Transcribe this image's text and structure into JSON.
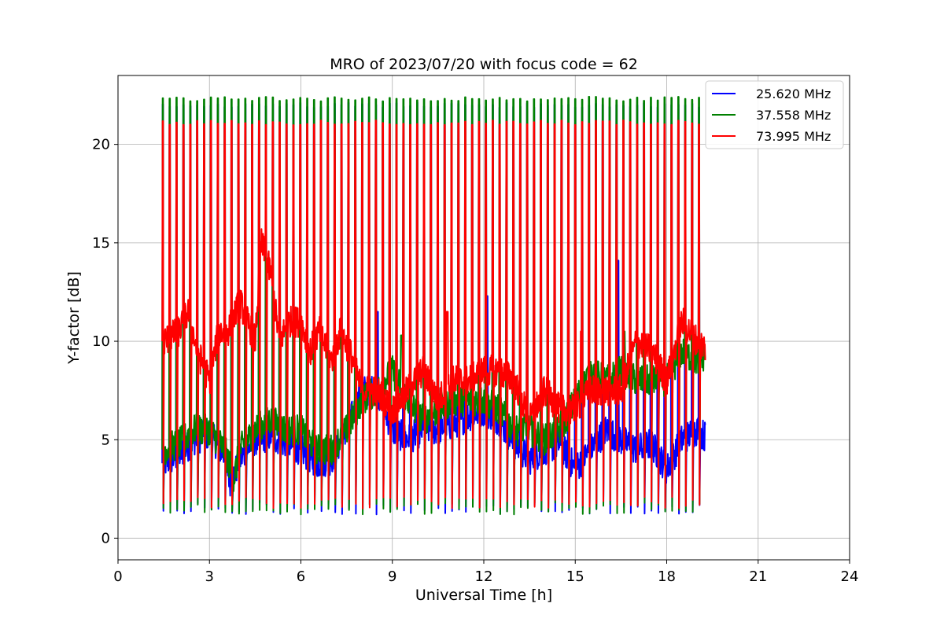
{
  "chart_data": {
    "type": "line",
    "title": "MRO of 2023/07/20 with focus code = 62",
    "xlabel": "Universal Time [h]",
    "ylabel": "Y-factor [dB]",
    "xlim": [
      0,
      24
    ],
    "ylim": [
      -1.1,
      23.5
    ],
    "xticks": [
      0,
      3,
      6,
      9,
      12,
      15,
      18,
      21,
      24
    ],
    "yticks": [
      0,
      5,
      10,
      15,
      20
    ],
    "grid": true,
    "legend_position": "upper-right",
    "calibration": {
      "start_h": 1.45,
      "period_h": 0.2255,
      "count": 79,
      "end_h": 19.4
    },
    "series": [
      {
        "name": "25.620 MHz",
        "color": "#0000ff",
        "peak_db": 22.0,
        "floor_db": 1.5,
        "baseline": [
          [
            1.5,
            3.8
          ],
          [
            2.0,
            4.2
          ],
          [
            2.5,
            5.0
          ],
          [
            3.0,
            5.3
          ],
          [
            3.5,
            4.2
          ],
          [
            3.7,
            2.8
          ],
          [
            4.0,
            4.0
          ],
          [
            4.5,
            5.0
          ],
          [
            5.0,
            5.2
          ],
          [
            5.5,
            4.8
          ],
          [
            6.0,
            4.5
          ],
          [
            6.5,
            3.8
          ],
          [
            7.0,
            4.0
          ],
          [
            7.5,
            5.5
          ],
          [
            8.0,
            7.5
          ],
          [
            8.5,
            7.5
          ],
          [
            9.0,
            5.5
          ],
          [
            9.5,
            5.0
          ],
          [
            10.0,
            5.5
          ],
          [
            10.5,
            5.5
          ],
          [
            11.0,
            5.8
          ],
          [
            11.5,
            6.2
          ],
          [
            12.0,
            6.5
          ],
          [
            12.5,
            6.0
          ],
          [
            13.0,
            4.8
          ],
          [
            13.5,
            4.0
          ],
          [
            14.0,
            4.5
          ],
          [
            14.5,
            4.8
          ],
          [
            15.0,
            3.5
          ],
          [
            15.5,
            4.5
          ],
          [
            16.0,
            5.5
          ],
          [
            16.5,
            5.0
          ],
          [
            17.0,
            4.5
          ],
          [
            17.5,
            4.8
          ],
          [
            18.0,
            3.5
          ],
          [
            18.5,
            5.0
          ],
          [
            19.0,
            5.5
          ],
          [
            19.4,
            5.0
          ]
        ],
        "spikes": [
          [
            8.5,
            11.5
          ],
          [
            12.1,
            12.3
          ],
          [
            16.4,
            14.1
          ]
        ]
      },
      {
        "name": "37.558 MHz",
        "color": "#008000",
        "peak_db": 22.3,
        "floor_db": 1.5,
        "baseline": [
          [
            1.5,
            4.5
          ],
          [
            2.0,
            4.8
          ],
          [
            2.5,
            5.5
          ],
          [
            3.0,
            5.5
          ],
          [
            3.5,
            4.5
          ],
          [
            3.8,
            3.0
          ],
          [
            4.0,
            4.5
          ],
          [
            4.5,
            5.5
          ],
          [
            5.0,
            6.0
          ],
          [
            5.5,
            5.5
          ],
          [
            6.0,
            5.5
          ],
          [
            6.5,
            4.5
          ],
          [
            7.0,
            4.5
          ],
          [
            7.5,
            5.5
          ],
          [
            8.0,
            7.0
          ],
          [
            8.5,
            7.5
          ],
          [
            9.0,
            8.5
          ],
          [
            9.5,
            7.0
          ],
          [
            10.0,
            6.0
          ],
          [
            10.5,
            6.5
          ],
          [
            11.0,
            7.0
          ],
          [
            11.5,
            7.0
          ],
          [
            12.0,
            7.0
          ],
          [
            12.5,
            6.5
          ],
          [
            13.0,
            5.5
          ],
          [
            13.5,
            5.5
          ],
          [
            14.0,
            5.0
          ],
          [
            14.5,
            5.5
          ],
          [
            15.0,
            7.0
          ],
          [
            15.5,
            8.5
          ],
          [
            16.0,
            8.0
          ],
          [
            16.5,
            8.5
          ],
          [
            17.0,
            8.0
          ],
          [
            17.5,
            8.0
          ],
          [
            18.0,
            8.0
          ],
          [
            18.5,
            9.5
          ],
          [
            19.0,
            9.0
          ],
          [
            19.4,
            9.5
          ]
        ],
        "spikes": [
          [
            9.3,
            10.3
          ],
          [
            16.6,
            10.5
          ],
          [
            19.3,
            10.3
          ]
        ]
      },
      {
        "name": "73.995 MHz",
        "color": "#ff0000",
        "peak_db": 21.1,
        "floor_db": 1.8,
        "baseline": [
          [
            1.5,
            10.0
          ],
          [
            2.0,
            10.5
          ],
          [
            2.3,
            11.5
          ],
          [
            2.6,
            9.5
          ],
          [
            3.0,
            8.0
          ],
          [
            3.3,
            10.5
          ],
          [
            3.6,
            10.5
          ],
          [
            4.0,
            12.0
          ],
          [
            4.5,
            10.0
          ],
          [
            4.7,
            15.0
          ],
          [
            5.0,
            13.5
          ],
          [
            5.3,
            10.0
          ],
          [
            5.6,
            11.0
          ],
          [
            6.0,
            11.0
          ],
          [
            6.3,
            9.5
          ],
          [
            6.6,
            10.5
          ],
          [
            7.0,
            9.0
          ],
          [
            7.3,
            10.5
          ],
          [
            7.6,
            9.5
          ],
          [
            8.0,
            7.5
          ],
          [
            8.5,
            7.5
          ],
          [
            9.0,
            6.5
          ],
          [
            9.5,
            7.5
          ],
          [
            10.0,
            8.5
          ],
          [
            10.5,
            7.0
          ],
          [
            11.0,
            8.0
          ],
          [
            11.5,
            8.0
          ],
          [
            12.0,
            8.5
          ],
          [
            12.5,
            8.5
          ],
          [
            13.0,
            8.0
          ],
          [
            13.5,
            6.0
          ],
          [
            14.0,
            7.5
          ],
          [
            14.5,
            6.5
          ],
          [
            15.0,
            6.5
          ],
          [
            15.5,
            7.5
          ],
          [
            16.0,
            7.5
          ],
          [
            16.5,
            7.5
          ],
          [
            17.0,
            10.0
          ],
          [
            17.5,
            9.5
          ],
          [
            18.0,
            8.0
          ],
          [
            18.5,
            11.0
          ],
          [
            19.0,
            10.0
          ],
          [
            19.4,
            9.5
          ]
        ],
        "spikes": [
          [
            10.8,
            11.5
          ],
          [
            15.2,
            10.5
          ]
        ]
      }
    ]
  }
}
